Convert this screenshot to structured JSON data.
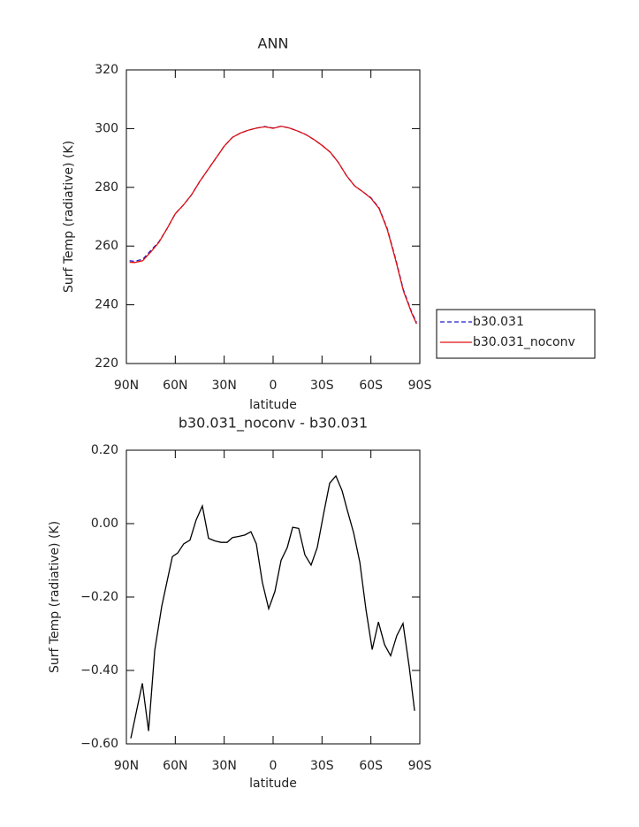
{
  "chart_data": [
    {
      "type": "line",
      "title": "ANN",
      "xlabel": "latitude",
      "ylabel": "Surf Temp (radiative) (K)",
      "x": [
        88,
        85,
        80,
        75,
        70,
        65,
        60,
        55,
        50,
        45,
        40,
        35,
        30,
        25,
        20,
        15,
        10,
        5,
        0,
        -5,
        -10,
        -15,
        -20,
        -25,
        -30,
        -35,
        -40,
        -45,
        -50,
        -55,
        -60,
        -65,
        -70,
        -75,
        -80,
        -85,
        -88
      ],
      "series": [
        {
          "name": "b30.031",
          "color": "#1f1fcc",
          "linestyle": "dashed",
          "values": [
            255,
            254.8,
            255.5,
            258.5,
            261.5,
            266,
            271,
            274,
            277.5,
            282,
            286,
            290,
            294,
            297,
            298.5,
            299.5,
            300.2,
            300.7,
            300.2,
            300.8,
            300.2,
            299.2,
            298,
            296.3,
            294.3,
            292,
            288.5,
            284,
            280.5,
            278.5,
            276.5,
            273,
            266,
            256,
            245,
            237.5,
            234
          ]
        },
        {
          "name": "b30.031_noconv",
          "color": "#e01010",
          "linestyle": "solid",
          "values": [
            254.5,
            254.4,
            255,
            258,
            261.3,
            266,
            271,
            274,
            277.5,
            282,
            286,
            290,
            294,
            297,
            298.5,
            299.5,
            300.2,
            300.6,
            300.1,
            300.8,
            300.2,
            299.2,
            298,
            296.3,
            294.3,
            292,
            288.5,
            284,
            280.5,
            278.5,
            276.3,
            272.8,
            265.7,
            255.6,
            244.6,
            237.2,
            233.5
          ]
        }
      ],
      "xlim": [
        90,
        -90
      ],
      "xticks": [
        {
          "value": 90,
          "label": "90N"
        },
        {
          "value": 60,
          "label": "60N"
        },
        {
          "value": 30,
          "label": "30N"
        },
        0,
        {
          "value": -30,
          "label": "30S"
        },
        {
          "value": -60,
          "label": "60S"
        },
        {
          "value": -90,
          "label": "90S"
        }
      ],
      "ylim": [
        220,
        320
      ],
      "yticks": [
        220,
        240,
        260,
        280,
        300,
        320
      ],
      "grid": false,
      "legend": "right"
    },
    {
      "type": "line",
      "title": "b30.031_noconv - b30.031",
      "xlabel": "latitude",
      "ylabel": "Surf Temp (radiative) (K)",
      "x": [
        87.3,
        80.2,
        76.4,
        72.6,
        68.3,
        61.8,
        58.5,
        54.8,
        51,
        47.2,
        43.4,
        39.6,
        35.8,
        32,
        28.2,
        24.9,
        21.1,
        17.3,
        13.6,
        10.3,
        6.6,
        2.7,
        -1.1,
        -4.9,
        -8.7,
        -12,
        -15.7,
        -19.5,
        -23.3,
        -27.1,
        -30.9,
        -34.7,
        -38.5,
        -42.3,
        -45.6,
        -49.4,
        -53.2,
        -57,
        -60.8,
        -64.6,
        -68.4,
        -72.1,
        -75.9,
        -79.7,
        -83.5,
        -86.8
      ],
      "series": [
        {
          "color": "#000000",
          "linestyle": "solid",
          "values": [
            -0.585,
            -0.435,
            -0.565,
            -0.345,
            -0.225,
            -0.09,
            -0.08,
            -0.055,
            -0.045,
            0.01,
            0.048,
            -0.04,
            -0.047,
            -0.051,
            -0.051,
            -0.038,
            -0.035,
            -0.031,
            -0.022,
            -0.055,
            -0.16,
            -0.232,
            -0.185,
            -0.1,
            -0.065,
            -0.01,
            -0.013,
            -0.085,
            -0.113,
            -0.065,
            0.025,
            0.11,
            0.13,
            0.09,
            0.035,
            -0.025,
            -0.105,
            -0.235,
            -0.343,
            -0.268,
            -0.33,
            -0.36,
            -0.305,
            -0.272,
            -0.39,
            -0.51
          ]
        }
      ],
      "xlim": [
        90,
        -90
      ],
      "xticks": [
        {
          "value": 90,
          "label": "90N"
        },
        {
          "value": 60,
          "label": "60N"
        },
        {
          "value": 30,
          "label": "30N"
        },
        0,
        {
          "value": -30,
          "label": "30S"
        },
        {
          "value": -60,
          "label": "60S"
        },
        {
          "value": -90,
          "label": "90S"
        }
      ],
      "ylim": [
        -0.6,
        0.2
      ],
      "yticks": [
        {
          "value": -0.6,
          "label": "−0.60"
        },
        {
          "value": -0.4,
          "label": "−0.40"
        },
        {
          "value": -0.2,
          "label": "−0.20"
        },
        {
          "value": 0,
          "label": "0.00"
        },
        {
          "value": 0.2,
          "label": "0.20"
        }
      ],
      "grid": false
    }
  ]
}
